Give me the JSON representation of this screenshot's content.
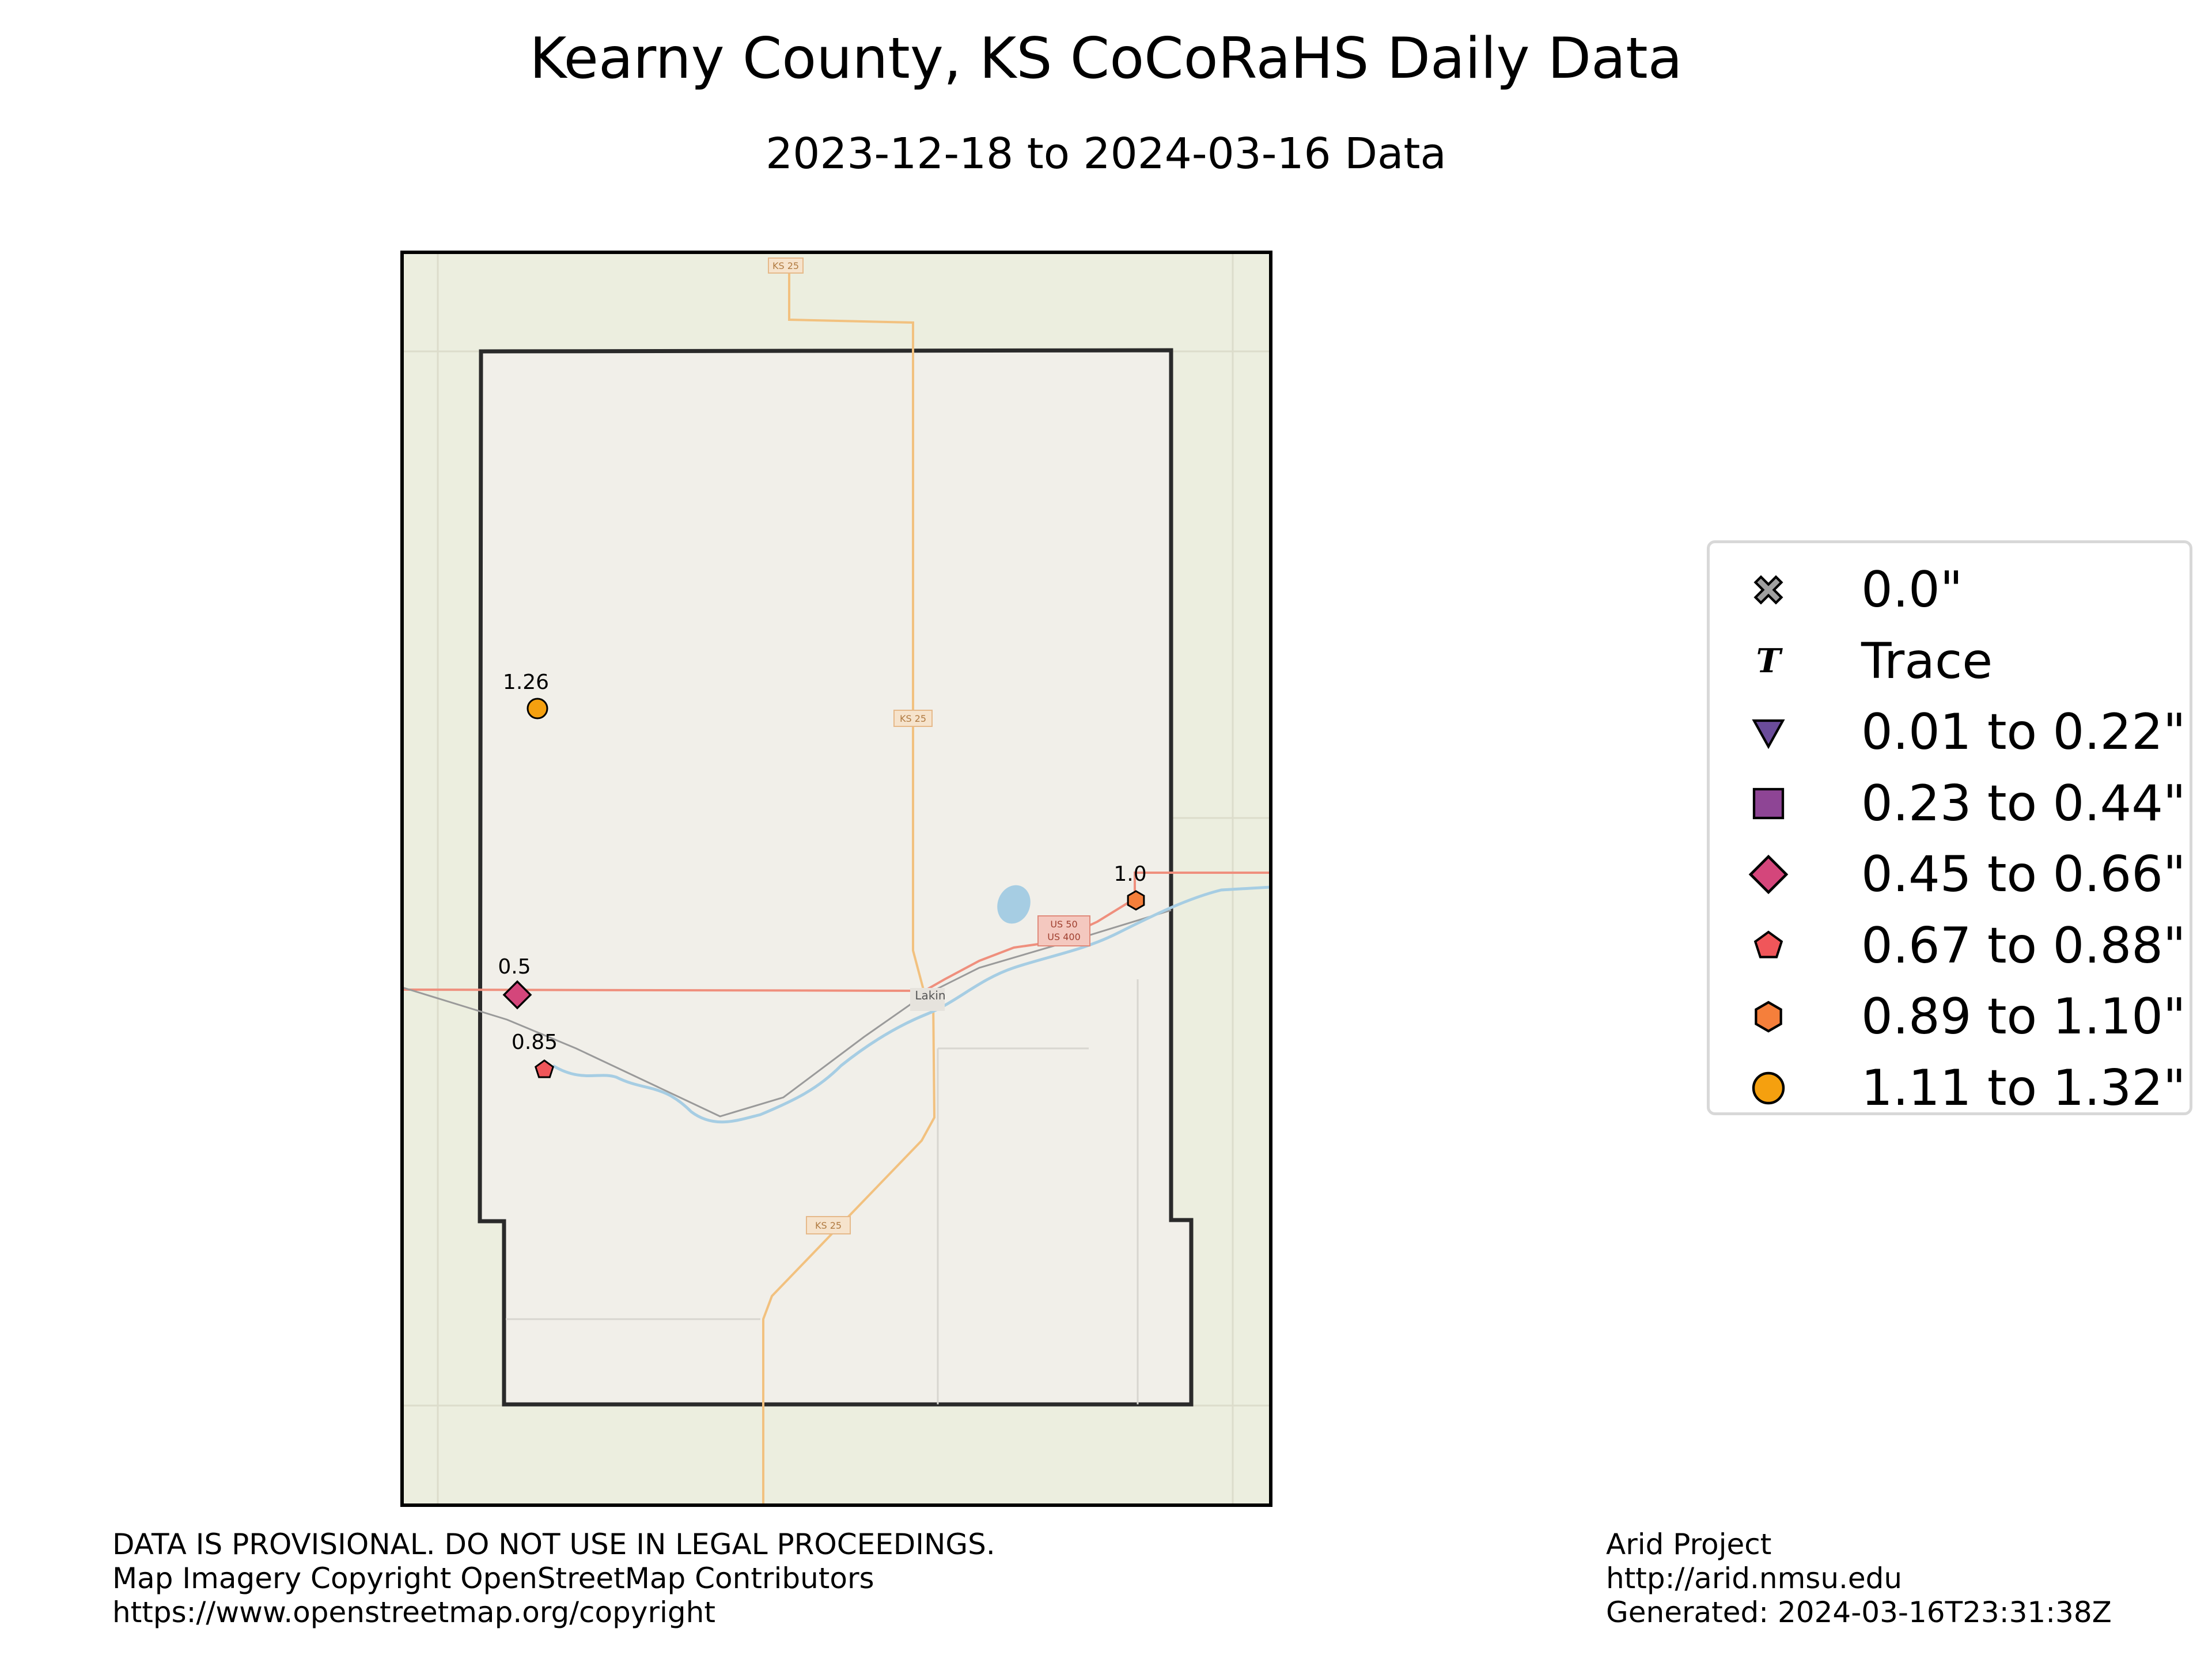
{
  "title": "Kearny County, KS CoCoRaHS Daily Data",
  "subtitle": "2023-12-18 to 2024-03-16 Data",
  "map": {
    "town_label": "Lakin",
    "road_shields": [
      {
        "id": "ks25-top",
        "label": "KS 25"
      },
      {
        "id": "ks25-mid",
        "label": "KS 25"
      },
      {
        "id": "ks25-south",
        "label": "KS 25"
      },
      {
        "id": "us50",
        "label": "US 50"
      },
      {
        "id": "us400",
        "label": "US 400"
      }
    ],
    "stations": [
      {
        "id": "st-126",
        "value": 1.26,
        "label": "1.26",
        "symbol": "circle",
        "color": "#f5a00f"
      },
      {
        "id": "st-10",
        "value": 1.0,
        "label": "1.0",
        "symbol": "hexagon",
        "color": "#f57f3b"
      },
      {
        "id": "st-05",
        "value": 0.5,
        "label": "0.5",
        "symbol": "diamond",
        "color": "#d4467b"
      },
      {
        "id": "st-085",
        "value": 0.85,
        "label": "0.85",
        "symbol": "pentagon",
        "color": "#f0565a"
      }
    ]
  },
  "legend": {
    "items": [
      {
        "label": "0.0\"",
        "symbol": "x-mark",
        "color": "#a0a0a0"
      },
      {
        "label": "Trace",
        "symbol": "T-glyph",
        "color": "#000000"
      },
      {
        "label": "0.01 to 0.22\"",
        "symbol": "triangle-down",
        "color": "#6b4c9a"
      },
      {
        "label": "0.23 to 0.44\"",
        "symbol": "square",
        "color": "#8e4595"
      },
      {
        "label": "0.45 to 0.66\"",
        "symbol": "diamond",
        "color": "#d4467b"
      },
      {
        "label": "0.67 to 0.88\"",
        "symbol": "pentagon",
        "color": "#f0565a"
      },
      {
        "label": "0.89 to 1.10\"",
        "symbol": "hexagon",
        "color": "#f57f3b"
      },
      {
        "label": "1.11 to 1.32\"",
        "symbol": "circle",
        "color": "#f5a00f"
      }
    ]
  },
  "footer_left": [
    "DATA IS PROVISIONAL. DO NOT USE IN LEGAL PROCEEDINGS.",
    "Map Imagery Copyright OpenStreetMap Contributors",
    "https://www.openstreetmap.org/copyright"
  ],
  "footer_right": [
    "Arid Project",
    "http://arid.nmsu.edu",
    "Generated: 2024-03-16T23:31:38Z"
  ]
}
